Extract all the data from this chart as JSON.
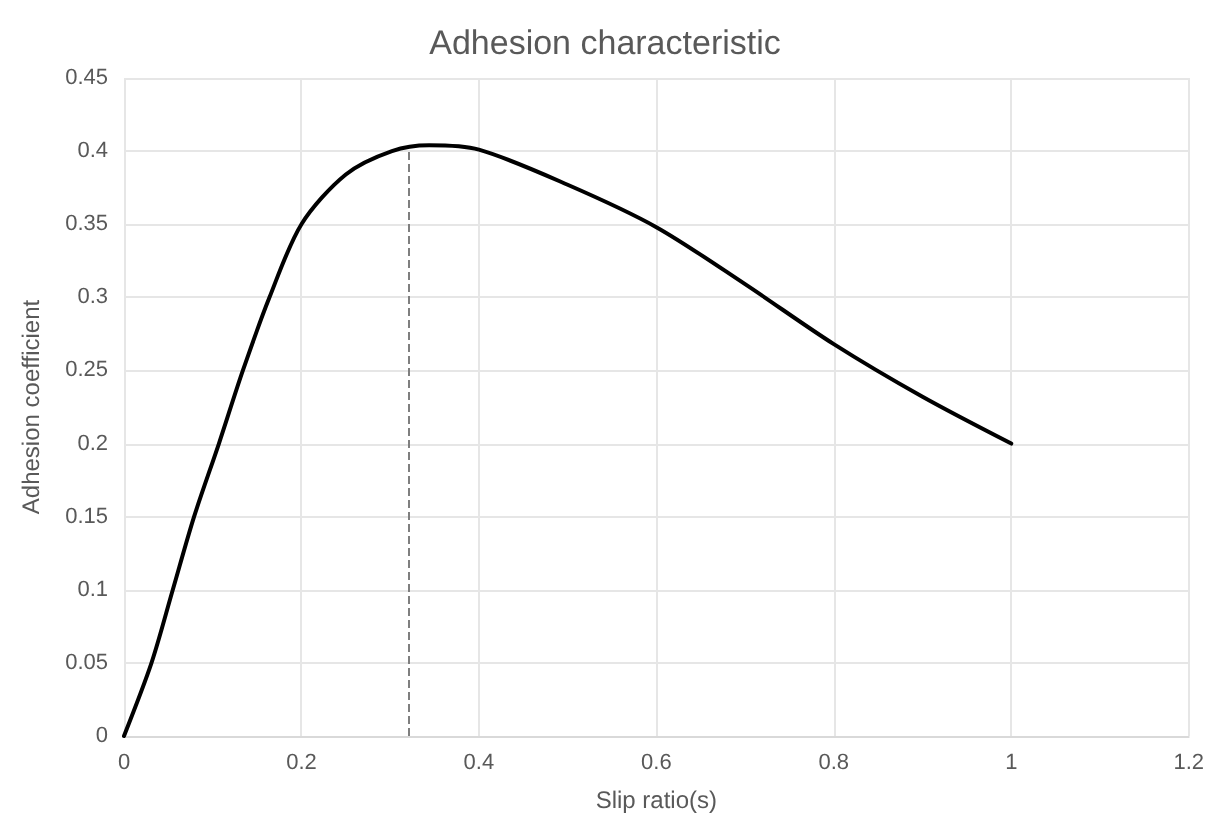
{
  "chart_data": {
    "type": "line",
    "title": "Adhesion characteristic",
    "xlabel": "Slip ratio(s)",
    "ylabel": "Adhesion coefficient",
    "x": [
      0,
      0.031,
      0.055,
      0.079,
      0.107,
      0.134,
      0.164,
      0.2,
      0.25,
      0.302,
      0.344,
      0.4,
      0.5,
      0.6,
      0.7,
      0.8,
      0.9,
      1.0
    ],
    "series": [
      {
        "color": "#000000",
        "values": [
          0,
          0.05,
          0.1,
          0.15,
          0.2,
          0.25,
          0.3,
          0.35,
          0.384,
          0.4,
          0.404,
          0.401,
          0.377,
          0.348,
          0.309,
          0.268,
          0.232,
          0.2
        ]
      }
    ],
    "xlim": [
      0,
      1.2
    ],
    "xticks": [
      0,
      0.2,
      0.4,
      0.6,
      0.8,
      1,
      1.2
    ],
    "ylim": [
      0,
      0.45
    ],
    "yticks": [
      0,
      0.05,
      0.1,
      0.15,
      0.2,
      0.25,
      0.3,
      0.35,
      0.4,
      0.45
    ],
    "ref_lines": [
      {
        "axis": "x",
        "value": 0.32,
        "color": "#7f7f7f",
        "line_style": "dashed"
      }
    ],
    "grid": true,
    "marker": "none",
    "line_style": "solid"
  }
}
